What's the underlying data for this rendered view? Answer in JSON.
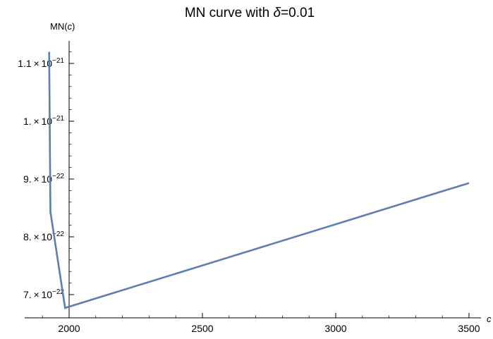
{
  "chart_data": {
    "type": "line",
    "title": {
      "prefix": "MN curve with ",
      "symbol": "δ",
      "suffix": "=0.01"
    },
    "xlabel": "c",
    "ylabel": {
      "prefix": "MN(",
      "var": "c",
      "suffix": ")"
    },
    "xlim": [
      1800,
      3500
    ],
    "ylim": [
      6.65e-22,
      1.145e-21
    ],
    "x_ticks": [
      {
        "value": 2000,
        "label": "2000"
      },
      {
        "value": 2500,
        "label": "2500"
      },
      {
        "value": 3000,
        "label": "3000"
      },
      {
        "value": 3500,
        "label": "3500"
      }
    ],
    "y_ticks": [
      {
        "value": 7e-22,
        "mantissa": "7.",
        "exp": "−22"
      },
      {
        "value": 8e-22,
        "mantissa": "8.",
        "exp": "−22"
      },
      {
        "value": 9e-22,
        "mantissa": "9.",
        "exp": "−22"
      },
      {
        "value": 1e-21,
        "mantissa": "1.",
        "exp": "−21"
      },
      {
        "value": 1.1e-21,
        "mantissa": "1.1",
        "exp": "−21"
      }
    ],
    "x_minor_step": 100,
    "y_minor_step": 2e-23,
    "series": [
      {
        "x": [
          1925,
          1930,
          1985,
          3500
        ],
        "y": [
          1.12e-21,
          8.43e-22,
          6.77e-22,
          8.93e-22
        ],
        "color": "#5b7fae"
      }
    ],
    "grid": false,
    "legend": "none"
  }
}
